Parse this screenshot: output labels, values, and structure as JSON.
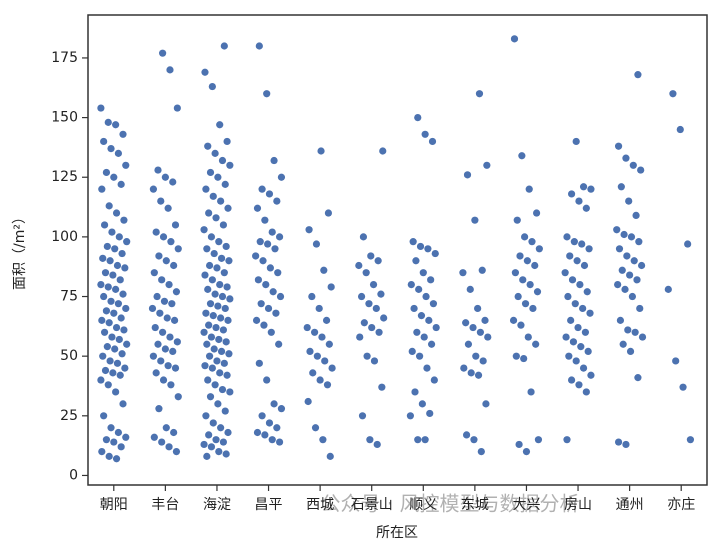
{
  "chart_data": {
    "type": "strip",
    "ylabel": "面积（/m²）",
    "xlabel": "所在区",
    "watermark": "公众号 · 风控模型与数据分析",
    "color": "#4c72b0",
    "categories": [
      "朝阳",
      "丰台",
      "海淀",
      "昌平",
      "西城",
      "石景山",
      "顺义",
      "东城",
      "大兴",
      "房山",
      "通州",
      "亦庄"
    ],
    "values": [
      [
        154,
        148,
        147,
        143,
        140,
        137,
        135,
        130,
        127,
        125,
        122,
        120,
        113,
        110,
        107,
        105,
        102,
        100,
        98,
        96,
        95,
        93,
        91,
        90,
        88,
        87,
        85,
        84,
        82,
        80,
        79,
        78,
        76,
        75,
        73,
        72,
        70,
        69,
        68,
        66,
        65,
        64,
        62,
        61,
        60,
        58,
        57,
        55,
        54,
        53,
        51,
        50,
        48,
        47,
        45,
        44,
        43,
        42,
        40,
        38,
        35,
        30,
        25,
        20,
        18,
        16,
        15,
        14,
        12,
        10,
        8,
        7
      ],
      [
        177,
        170,
        154,
        128,
        125,
        123,
        120,
        115,
        112,
        105,
        102,
        100,
        98,
        95,
        92,
        90,
        88,
        85,
        82,
        80,
        77,
        75,
        73,
        72,
        70,
        68,
        66,
        65,
        62,
        60,
        58,
        56,
        55,
        53,
        52,
        50,
        48,
        46,
        45,
        43,
        40,
        38,
        33,
        28,
        20,
        18,
        16,
        14,
        12,
        10
      ],
      [
        180,
        169,
        163,
        147,
        140,
        138,
        135,
        132,
        130,
        127,
        125,
        122,
        120,
        117,
        115,
        112,
        110,
        108,
        105,
        103,
        100,
        98,
        96,
        95,
        93,
        91,
        90,
        88,
        87,
        85,
        84,
        82,
        80,
        79,
        78,
        76,
        75,
        74,
        72,
        71,
        70,
        68,
        67,
        66,
        65,
        63,
        62,
        61,
        60,
        58,
        57,
        56,
        55,
        53,
        52,
        51,
        50,
        48,
        47,
        46,
        45,
        43,
        42,
        40,
        38,
        36,
        35,
        33,
        30,
        27,
        25,
        22,
        20,
        18,
        17,
        15,
        14,
        13,
        12,
        10,
        9,
        8
      ],
      [
        180,
        160,
        132,
        125,
        120,
        118,
        115,
        112,
        107,
        102,
        100,
        98,
        97,
        95,
        92,
        90,
        87,
        85,
        82,
        80,
        77,
        75,
        72,
        70,
        68,
        65,
        63,
        60,
        55,
        47,
        40,
        30,
        28,
        25,
        22,
        20,
        18,
        17,
        15,
        14
      ],
      [
        136,
        110,
        103,
        97,
        86,
        79,
        75,
        70,
        65,
        62,
        60,
        58,
        55,
        52,
        50,
        48,
        45,
        43,
        40,
        38,
        31,
        20,
        15,
        8
      ],
      [
        136,
        100,
        92,
        90,
        88,
        85,
        80,
        76,
        75,
        72,
        70,
        66,
        64,
        62,
        60,
        58,
        50,
        48,
        37,
        25,
        15,
        13
      ],
      [
        150,
        143,
        140,
        98,
        96,
        95,
        93,
        90,
        85,
        82,
        80,
        78,
        75,
        72,
        70,
        67,
        65,
        62,
        60,
        58,
        55,
        52,
        50,
        45,
        40,
        35,
        30,
        26,
        25,
        15,
        15
      ],
      [
        160,
        130,
        126,
        107,
        86,
        85,
        78,
        70,
        65,
        64,
        62,
        60,
        58,
        55,
        50,
        48,
        45,
        43,
        42,
        30,
        17,
        15,
        10
      ],
      [
        183,
        134,
        120,
        110,
        107,
        100,
        98,
        95,
        92,
        90,
        88,
        85,
        82,
        80,
        77,
        75,
        72,
        70,
        65,
        63,
        58,
        55,
        50,
        49,
        35,
        15,
        13,
        10
      ],
      [
        140,
        121,
        120,
        118,
        115,
        112,
        100,
        98,
        97,
        95,
        92,
        90,
        88,
        85,
        82,
        80,
        77,
        75,
        72,
        70,
        68,
        65,
        62,
        60,
        58,
        56,
        54,
        52,
        50,
        48,
        45,
        42,
        40,
        38,
        35,
        15
      ],
      [
        168,
        138,
        133,
        130,
        128,
        121,
        115,
        109,
        103,
        101,
        100,
        98,
        95,
        92,
        90,
        88,
        86,
        84,
        82,
        80,
        78,
        75,
        70,
        65,
        61,
        60,
        58,
        55,
        52,
        41,
        14,
        13
      ],
      [
        160,
        145,
        97,
        78,
        48,
        37,
        15
      ]
    ],
    "ylim": [
      -4,
      193
    ],
    "yticks": [
      0,
      25,
      50,
      75,
      100,
      125,
      150,
      175
    ]
  }
}
